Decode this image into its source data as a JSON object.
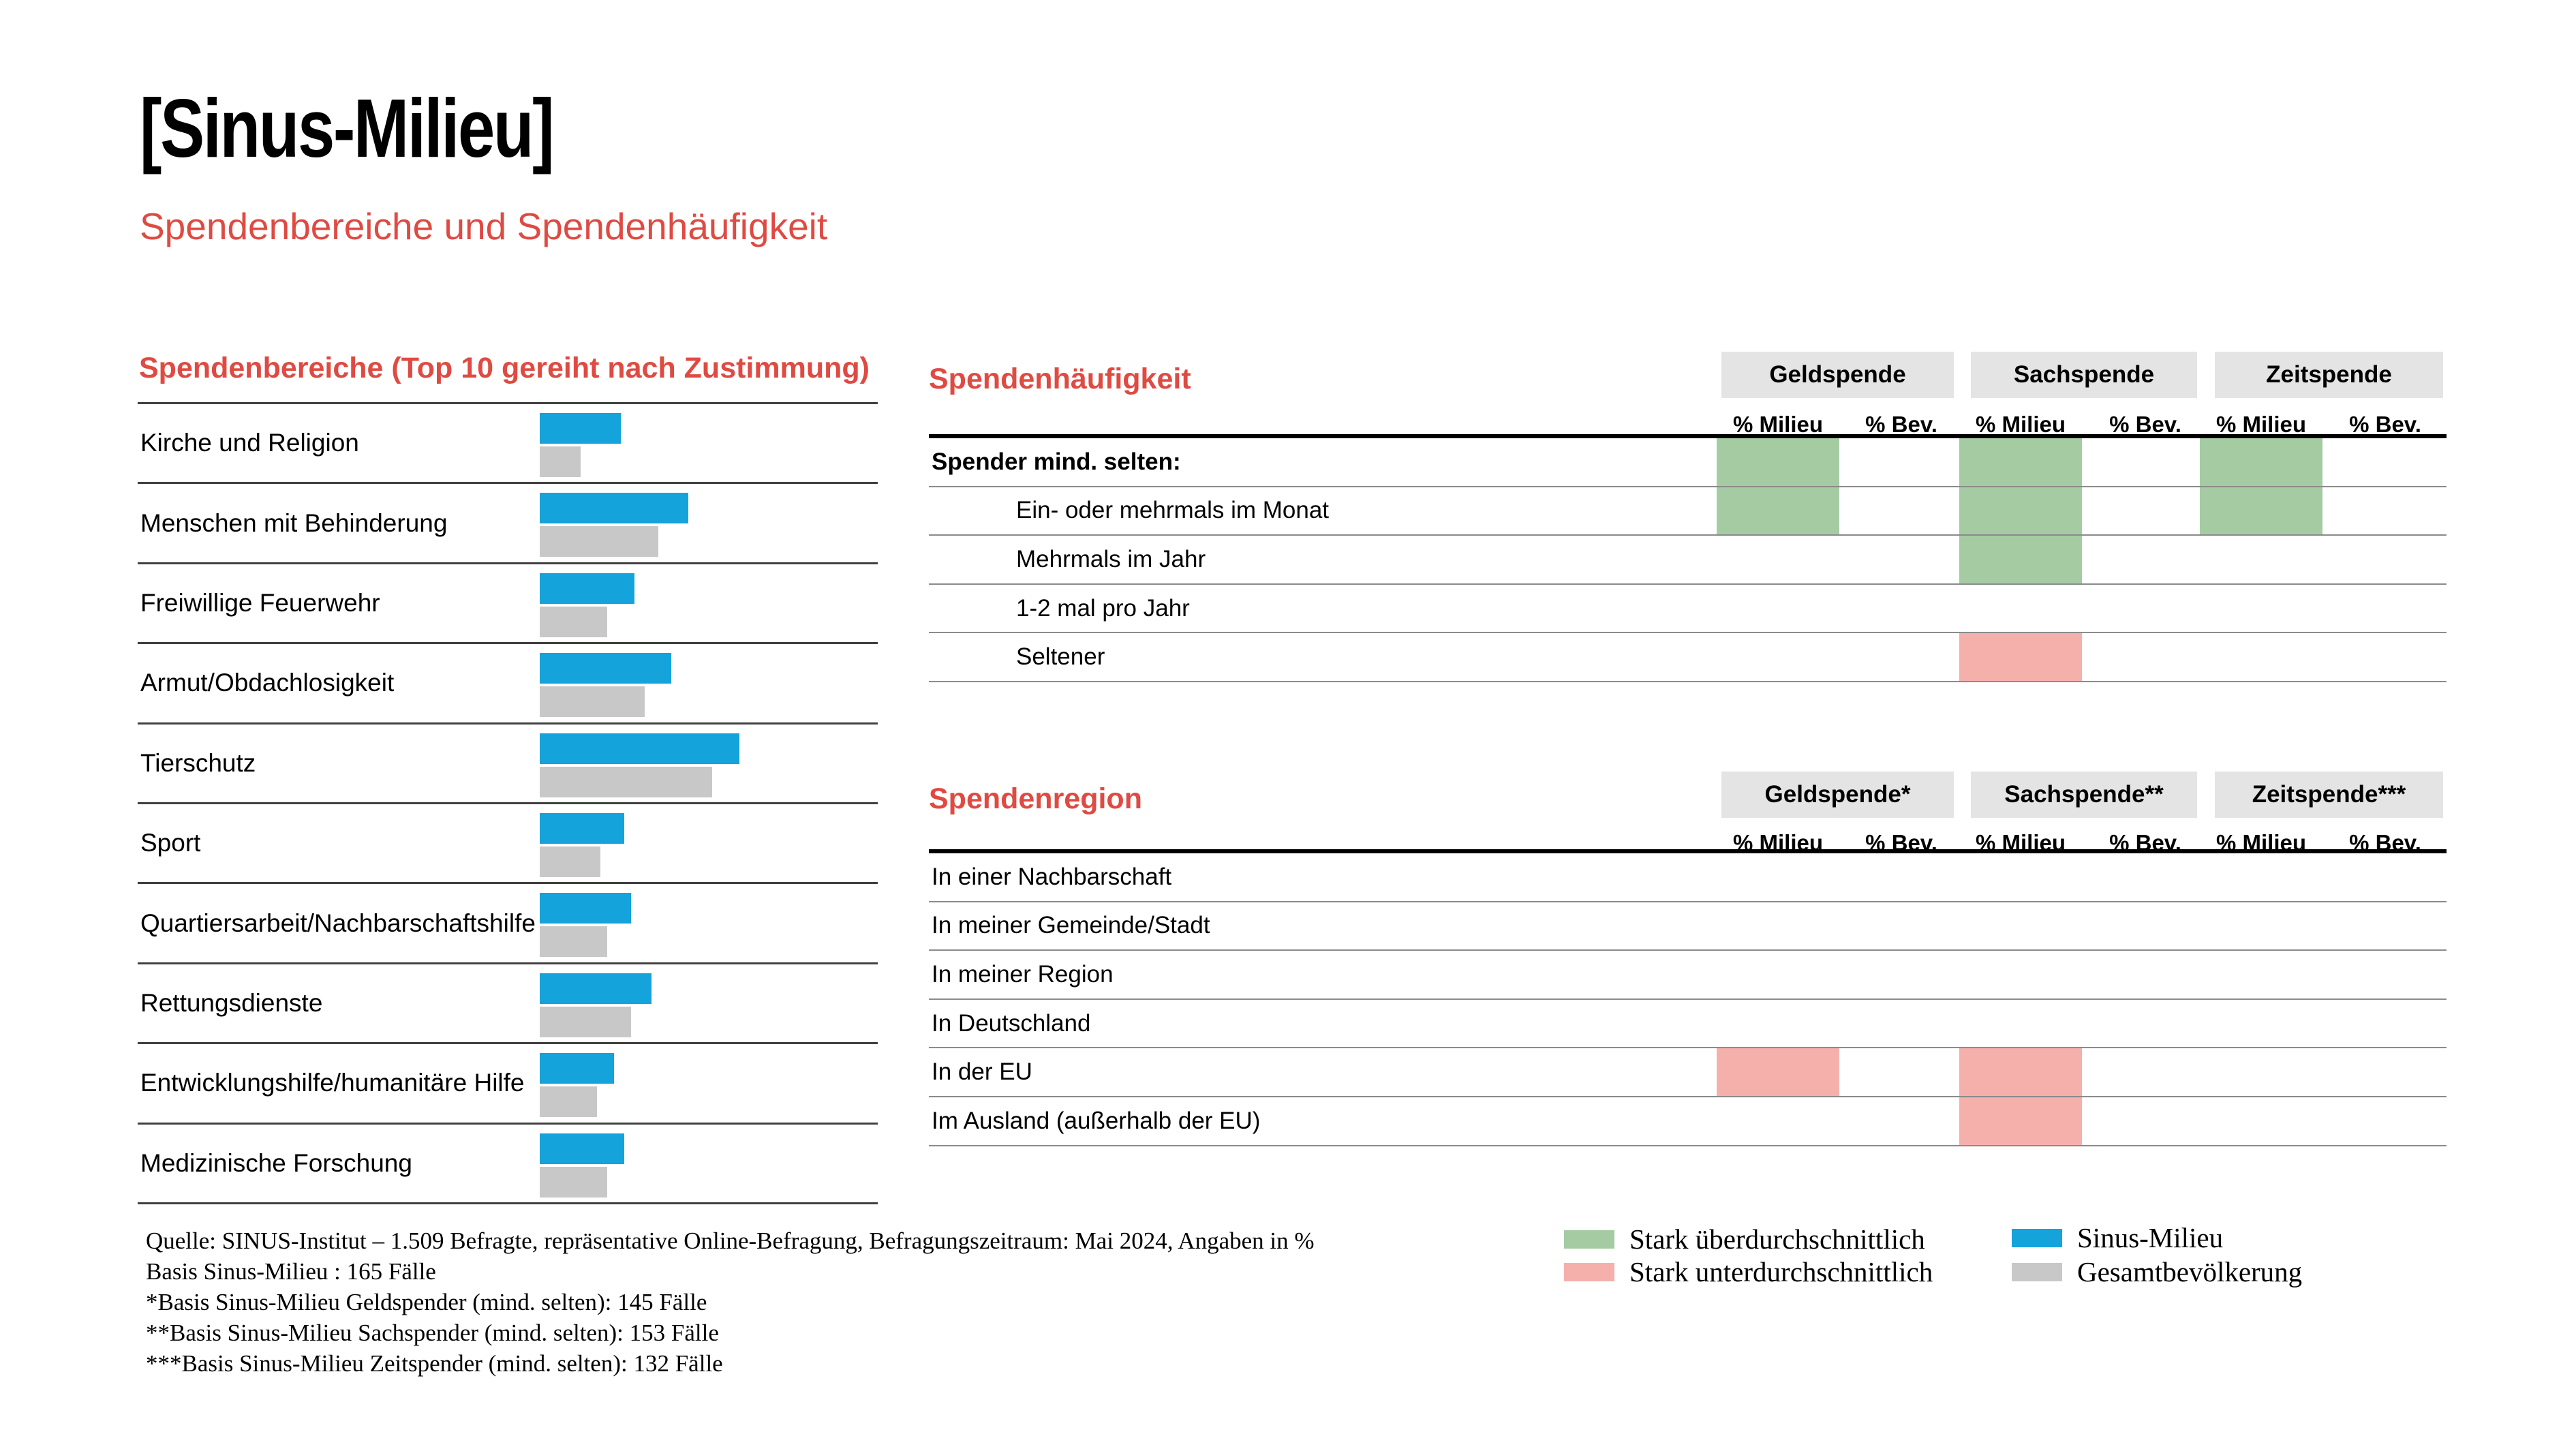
{
  "header": {
    "title": "[Sinus-Milieu]",
    "subtitle": "Spendenbereiche und Spendenhäufigkeit"
  },
  "colors": {
    "milieu_blue": "#14A3DB",
    "bev_gray": "#C8C8C8",
    "above_green": "#A5CBA3",
    "below_pink": "#F5B0AC",
    "accent_red": "#DF4A42",
    "header_box_gray": "#E4E4E4"
  },
  "spendenbereiche": {
    "title": "Spendenbereiche (Top 10 gereiht nach Zustimmung)"
  },
  "haeufigkeit": {
    "title": "Spendenhäufigkeit",
    "groups": [
      "Geldspende",
      "Sachspende",
      "Zeitspende"
    ],
    "subcols": [
      "% Milieu",
      "% Bev."
    ]
  },
  "region": {
    "title": "Spendenregion",
    "groups": [
      "Geldspende*",
      "Sachspende**",
      "Zeitspende***"
    ],
    "subcols": [
      "% Milieu",
      "% Bev."
    ]
  },
  "chart_data": [
    {
      "type": "bar",
      "title": "Spendenbereiche (Top 10 gereiht nach Zustimmung)",
      "orientation": "horizontal",
      "categories": [
        "Kirche und Religion",
        "Menschen mit Behinderung",
        "Freiwillige Feuerwehr",
        "Armut/Obdachlosigkeit",
        "Tierschutz",
        "Sport",
        "Quartiersarbeit/Nachbarschaftshilfe",
        "Rettungsdienste",
        "Entwicklungshilfe/humanitäre Hilfe",
        "Medizinische Forschung"
      ],
      "series": [
        {
          "name": "Sinus-Milieu",
          "values": [
            24,
            44,
            28,
            39,
            59,
            25,
            27,
            33,
            22,
            25
          ]
        },
        {
          "name": "Gesamtbevölkerung",
          "values": [
            12,
            35,
            20,
            31,
            51,
            18,
            20,
            27,
            17,
            20
          ]
        }
      ],
      "xlim": [
        0,
        100
      ],
      "note": "Balken ohne Wertebeschriftung; Werte aus Balkenlängen geschätzt, Angaben in %"
    },
    {
      "type": "heatmap",
      "title": "Spendenhäufigkeit",
      "columns": [
        "Geldspende % Milieu",
        "Geldspende % Bev.",
        "Sachspende % Milieu",
        "Sachspende % Bev.",
        "Zeitspende % Milieu",
        "Zeitspende % Bev."
      ],
      "rows": [
        "Spender mind. selten:",
        "Ein- oder mehrmals im Monat",
        "Mehrmals im Jahr",
        "1-2 mal pro Jahr",
        "Seltener"
      ],
      "cells": [
        [
          "above",
          null,
          "above",
          null,
          "above",
          null
        ],
        [
          "above",
          null,
          "above",
          null,
          "above",
          null
        ],
        [
          null,
          null,
          "above",
          null,
          null,
          null
        ],
        [
          null,
          null,
          null,
          null,
          null,
          null
        ],
        [
          null,
          null,
          "below",
          null,
          null,
          null
        ]
      ],
      "legend": {
        "above": "Stark überdurchschnittlich",
        "below": "Stark unterdurchschnittlich"
      }
    },
    {
      "type": "heatmap",
      "title": "Spendenregion",
      "columns": [
        "Geldspende* % Milieu",
        "Geldspende* % Bev.",
        "Sachspende** % Milieu",
        "Sachspende** % Bev.",
        "Zeitspende*** % Milieu",
        "Zeitspende*** % Bev."
      ],
      "rows": [
        "In einer Nachbarschaft",
        "In meiner Gemeinde/Stadt",
        "In meiner Region",
        "In Deutschland",
        "In der EU",
        "Im Ausland (außerhalb der EU)"
      ],
      "cells": [
        [
          null,
          null,
          null,
          null,
          null,
          null
        ],
        [
          null,
          null,
          null,
          null,
          null,
          null
        ],
        [
          null,
          null,
          null,
          null,
          null,
          null
        ],
        [
          null,
          null,
          null,
          null,
          null,
          null
        ],
        [
          "below",
          null,
          "below",
          null,
          null,
          null
        ],
        [
          null,
          null,
          "below",
          null,
          null,
          null
        ]
      ],
      "legend": {
        "above": "Stark überdurchschnittlich",
        "below": "Stark unterdurchschnittlich"
      }
    }
  ],
  "footer": {
    "lines": [
      "Quelle: SINUS-Institut – 1.509 Befragte, repräsentative Online-Befragung, Befragungszeitraum: Mai 2024, Angaben in %",
      "Basis Sinus-Milieu : 165 Fälle",
      "*Basis Sinus-Milieu Geldspender (mind. selten): 145 Fälle",
      "**Basis Sinus-Milieu Sachspender (mind. selten): 153 Fälle",
      "***Basis Sinus-Milieu Zeitspender (mind. selten): 132 Fälle"
    ]
  },
  "legend": {
    "above": "Stark überdurchschnittlich",
    "below": "Stark unterdurchschnittlich",
    "milieu": "Sinus-Milieu",
    "bev": "Gesamtbevölkerung"
  }
}
